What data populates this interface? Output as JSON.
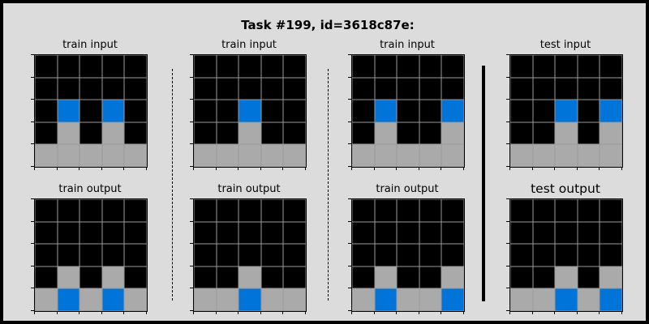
{
  "title": "Task #199, id=3618c87e:",
  "colors": {
    "0": "#000000",
    "1": "#0074d9",
    "5": "#aaaaaa"
  },
  "panels": [
    {
      "label": "train input",
      "big": false,
      "grid": [
        [
          0,
          0,
          0,
          0,
          0
        ],
        [
          0,
          0,
          0,
          0,
          0
        ],
        [
          0,
          1,
          0,
          1,
          0
        ],
        [
          0,
          5,
          0,
          5,
          0
        ],
        [
          5,
          5,
          5,
          5,
          5
        ]
      ]
    },
    {
      "label": "train output",
      "big": false,
      "grid": [
        [
          0,
          0,
          0,
          0,
          0
        ],
        [
          0,
          0,
          0,
          0,
          0
        ],
        [
          0,
          0,
          0,
          0,
          0
        ],
        [
          0,
          5,
          0,
          5,
          0
        ],
        [
          5,
          1,
          5,
          1,
          5
        ]
      ]
    },
    {
      "label": "train input",
      "big": false,
      "grid": [
        [
          0,
          0,
          0,
          0,
          0
        ],
        [
          0,
          0,
          0,
          0,
          0
        ],
        [
          0,
          0,
          1,
          0,
          0
        ],
        [
          0,
          0,
          5,
          0,
          0
        ],
        [
          5,
          5,
          5,
          5,
          5
        ]
      ]
    },
    {
      "label": "train output",
      "big": false,
      "grid": [
        [
          0,
          0,
          0,
          0,
          0
        ],
        [
          0,
          0,
          0,
          0,
          0
        ],
        [
          0,
          0,
          0,
          0,
          0
        ],
        [
          0,
          0,
          5,
          0,
          0
        ],
        [
          5,
          5,
          1,
          5,
          5
        ]
      ]
    },
    {
      "label": "train input",
      "big": false,
      "grid": [
        [
          0,
          0,
          0,
          0,
          0
        ],
        [
          0,
          0,
          0,
          0,
          0
        ],
        [
          0,
          1,
          0,
          0,
          1
        ],
        [
          0,
          5,
          0,
          0,
          5
        ],
        [
          5,
          5,
          5,
          5,
          5
        ]
      ]
    },
    {
      "label": "train output",
      "big": false,
      "grid": [
        [
          0,
          0,
          0,
          0,
          0
        ],
        [
          0,
          0,
          0,
          0,
          0
        ],
        [
          0,
          0,
          0,
          0,
          0
        ],
        [
          0,
          5,
          0,
          0,
          5
        ],
        [
          5,
          1,
          5,
          5,
          1
        ]
      ]
    },
    {
      "label": "test input",
      "big": false,
      "grid": [
        [
          0,
          0,
          0,
          0,
          0
        ],
        [
          0,
          0,
          0,
          0,
          0
        ],
        [
          0,
          0,
          1,
          0,
          1
        ],
        [
          0,
          0,
          5,
          0,
          5
        ],
        [
          5,
          5,
          5,
          5,
          5
        ]
      ]
    },
    {
      "label": "test output",
      "big": true,
      "grid": [
        [
          0,
          0,
          0,
          0,
          0
        ],
        [
          0,
          0,
          0,
          0,
          0
        ],
        [
          0,
          0,
          0,
          0,
          0
        ],
        [
          0,
          0,
          5,
          0,
          5
        ],
        [
          5,
          5,
          1,
          5,
          1
        ]
      ]
    }
  ]
}
